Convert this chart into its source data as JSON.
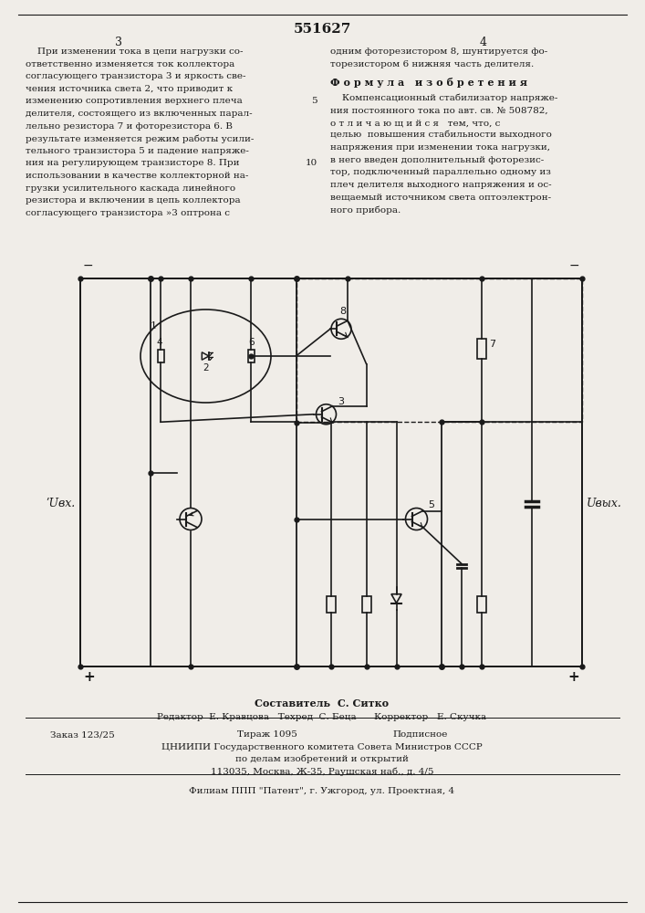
{
  "page_title": "551627",
  "col_left_num": "3",
  "col_right_num": "4",
  "formula_header": "Ф о р м у л а   и з о б р е т е н и я",
  "left_col_text": "    При изменении тока в цепи нагрузки со-\nответственно изменяется ток коллектора\nсогласующего транзистора 3 и яркость све-\nчения источника света 2, что приводит к\nизменению сопротивления верхнего плеча\nделителя, состоящего из включенных парал-\nлельно резистора 7 и фоторезистора 6. В\nрезультате изменяется режим работы усили-\nтельного транзистора 5 и падение напряже-\nния на регулирующем транзисторе 8. При\nиспользовании в качестве коллекторной на-\nгрузки усилительного каскада линейного\nрезистора и включении в цепь коллектора\nсогласующего транзистора »3 оптрона с",
  "right_col_top": "одним фоторезистором 8, шунтируется фо-\nторезистором 6 нижняя часть делителя.",
  "right_col_formula": "    Компенсационный стабилизатор напряже-\nния постоянного тока по авт. св. № 508782,\nо т л и ч а ю щ и й с я   тем, что, с\nцелью  повышения стабильности выходного\nнапряжения при изменении тока нагрузки,\nв него введен дополнительный фоторезис-\nтор, подключенный параллельно одному из\nплеч делителя выходного напряжения и ос-\nвещаемый источником света оптоэлектрон-\nного прибора.",
  "footer_sestavitel": "Составитель  С. Ситко",
  "footer_redaktor": "Редактор  Е. Кравцова   Техред  С. Беца      Корректор   Е. Скучка",
  "footer_zakaz": "Заказ 123/25",
  "footer_tirazh": "Тираж 1095",
  "footer_podpisnoe": "Подписное",
  "footer_cniip": "ЦНИИПИ Государственного комитета Совета Министров СССР",
  "footer_po_delam": "по делам изобретений и открытий",
  "footer_address": "113035, Москва, Ж-35, Раушская наб., д. 4/5",
  "footer_filial": "Филиам ППП \"Патент\", г. Ужгород, ул. Проектная, 4",
  "bg_color": "#f0ede8",
  "text_color": "#1a1a1a",
  "line_num_5": "5",
  "line_num_10": "10",
  "uvx_label": "ʹUвх.",
  "uvyx_label": "Uвых.",
  "label_minus": "−",
  "label_plus": "+"
}
